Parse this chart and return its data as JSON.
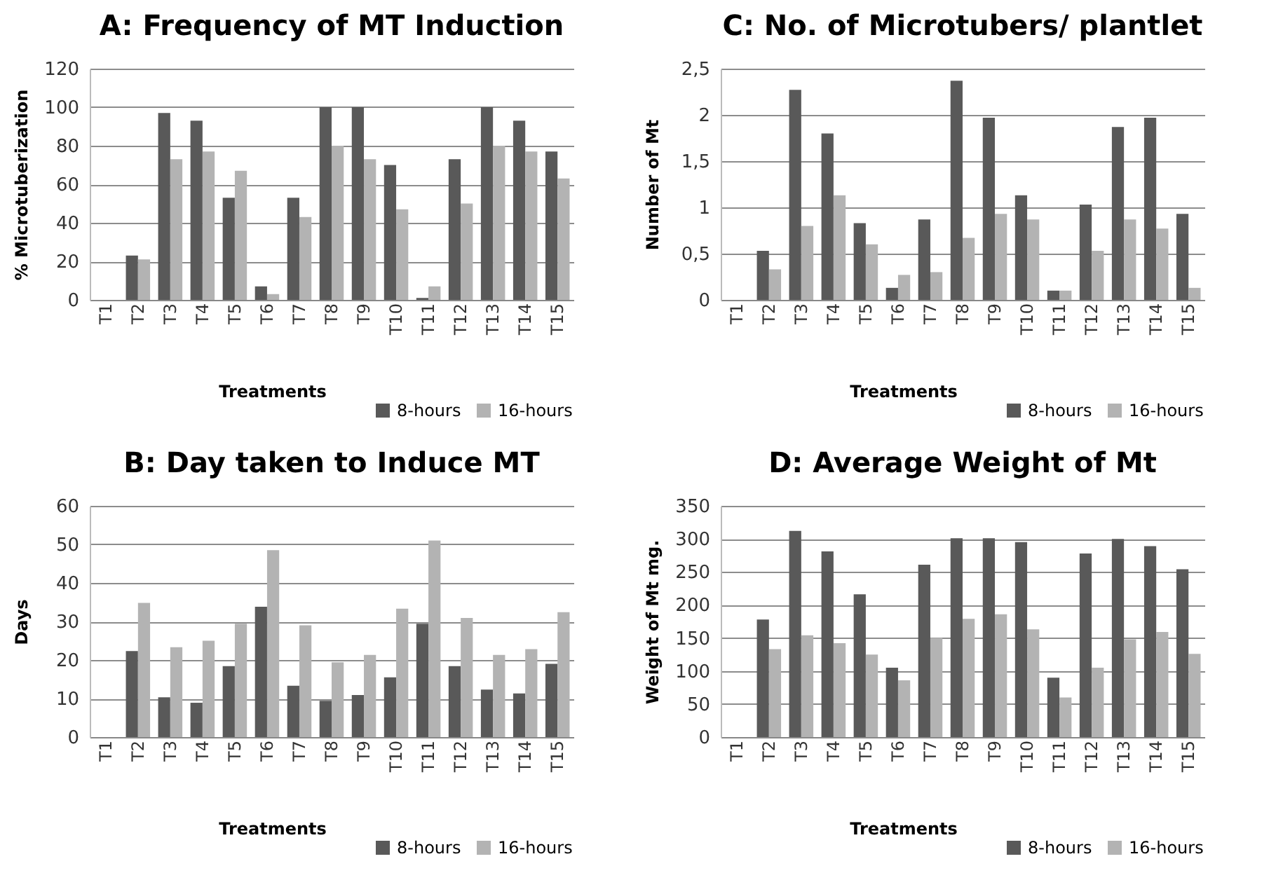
{
  "chart_data": [
    {
      "type": "bar",
      "title": "A: Frequency of MT Induction",
      "xlabel": "Treatments",
      "ylabel": "% Microtuberization",
      "categories": [
        "T1",
        "T2",
        "T3",
        "T4",
        "T5",
        "T6",
        "T7",
        "T8",
        "T9",
        "T10",
        "T11",
        "T12",
        "T13",
        "T14",
        "T15"
      ],
      "series": [
        {
          "name": "8-hours",
          "color": "#595959",
          "values": [
            0,
            23,
            97,
            93,
            53,
            7,
            53,
            100,
            100,
            70,
            1,
            73,
            100,
            93,
            77
          ]
        },
        {
          "name": "16-hours",
          "color": "#b3b3b3",
          "values": [
            0,
            21,
            73,
            77,
            67,
            3,
            43,
            80,
            73,
            47,
            7,
            50,
            80,
            77,
            63
          ]
        }
      ],
      "ylim": [
        0,
        120
      ],
      "yticks": [
        0,
        20,
        40,
        60,
        80,
        100,
        120
      ],
      "grid": "y",
      "legend": "bottom right"
    },
    {
      "type": "bar",
      "title": "C: No. of Microtubers/ plantlet",
      "xlabel": "Treatments",
      "ylabel": "Number of Mt",
      "categories": [
        "T1",
        "T2",
        "T3",
        "T4",
        "T5",
        "T6",
        "T7",
        "T8",
        "T9",
        "T10",
        "T11",
        "T12",
        "T13",
        "T14",
        "T15"
      ],
      "series": [
        {
          "name": "8-hours",
          "color": "#595959",
          "values": [
            0,
            0.53,
            2.27,
            1.8,
            0.83,
            0.13,
            0.87,
            2.37,
            1.97,
            1.13,
            0.1,
            1.03,
            1.87,
            1.97,
            0.93
          ]
        },
        {
          "name": "16-hours",
          "color": "#b3b3b3",
          "values": [
            0,
            0.33,
            0.8,
            1.13,
            0.6,
            0.27,
            0.3,
            0.67,
            0.93,
            0.87,
            0.1,
            0.53,
            0.87,
            0.77,
            0.13
          ]
        }
      ],
      "ylim": [
        0,
        2.5
      ],
      "yticks": [
        0,
        {
          "value": 0.5,
          "label": "0,5"
        },
        1,
        {
          "value": 1.5,
          "label": "1,5"
        },
        2,
        {
          "value": 2.5,
          "label": "2,5"
        }
      ],
      "grid": "y",
      "legend": "bottom right"
    },
    {
      "type": "bar",
      "title": "B: Day taken to Induce MT",
      "xlabel": "Treatments",
      "ylabel": "Days",
      "categories": [
        "T1",
        "T2",
        "T3",
        "T4",
        "T5",
        "T6",
        "T7",
        "T8",
        "T9",
        "T10",
        "T11",
        "T12",
        "T13",
        "T14",
        "T15"
      ],
      "series": [
        {
          "name": "8-hours",
          "color": "#595959",
          "values": [
            0,
            22.3,
            10.3,
            8.9,
            18.4,
            33.8,
            13.3,
            9.4,
            10.9,
            15.5,
            29.4,
            18.4,
            12.3,
            11.3,
            19
          ]
        },
        {
          "name": "16-hours",
          "color": "#b3b3b3",
          "values": [
            0,
            34.8,
            23.3,
            25,
            29.4,
            48.5,
            29,
            19.4,
            21.3,
            33.3,
            51,
            30.9,
            21.3,
            22.8,
            32.4
          ]
        }
      ],
      "ylim": [
        0,
        60
      ],
      "yticks": [
        0,
        10,
        20,
        30,
        40,
        50,
        60
      ],
      "grid": "y",
      "legend": "bottom right"
    },
    {
      "type": "bar",
      "title": "D: Average Weight of Mt",
      "xlabel": "Treatments",
      "ylabel": "Weight of Mt mg.",
      "categories": [
        "T1",
        "T2",
        "T3",
        "T4",
        "T5",
        "T6",
        "T7",
        "T8",
        "T9",
        "T10",
        "T11",
        "T12",
        "T13",
        "T14",
        "T15"
      ],
      "series": [
        {
          "name": "8-hours",
          "color": "#595959",
          "values": [
            0,
            178,
            312,
            281,
            216,
            105,
            261,
            301,
            301,
            295,
            90,
            278,
            300,
            289,
            254
          ]
        },
        {
          "name": "16-hours",
          "color": "#b3b3b3",
          "values": [
            0,
            133,
            154,
            142,
            125,
            86,
            150,
            179,
            186,
            163,
            60,
            105,
            148,
            159,
            126
          ]
        }
      ],
      "ylim": [
        0,
        350
      ],
      "yticks": [
        0,
        50,
        100,
        150,
        200,
        250,
        300,
        350
      ],
      "grid": "y",
      "legend": "bottom right"
    }
  ]
}
